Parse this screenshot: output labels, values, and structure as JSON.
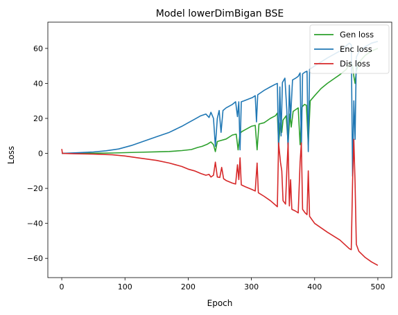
{
  "chart_data": {
    "type": "line",
    "title": "Model lowerDimBigan BSE",
    "xlabel": "Epoch",
    "ylabel": "Loss",
    "xlim": [
      -22,
      522
    ],
    "ylim": [
      -71,
      75
    ],
    "xticks": [
      0,
      100,
      200,
      300,
      400,
      500
    ],
    "yticks": [
      -60,
      -40,
      -20,
      0,
      20,
      40,
      60
    ],
    "legend_position": "top-right",
    "grid": false,
    "series": [
      {
        "name": "Gen loss",
        "color": "#2ca02c",
        "points": [
          [
            0,
            0
          ],
          [
            20,
            0
          ],
          [
            50,
            0.1
          ],
          [
            80,
            0.2
          ],
          [
            100,
            0.4
          ],
          [
            120,
            0.6
          ],
          [
            150,
            0.9
          ],
          [
            170,
            1.1
          ],
          [
            190,
            1.6
          ],
          [
            205,
            2.2
          ],
          [
            215,
            3.4
          ],
          [
            222,
            4.0
          ],
          [
            230,
            5.2
          ],
          [
            236,
            6.5
          ],
          [
            240,
            5.0
          ],
          [
            243,
            1.0
          ],
          [
            246,
            6.8
          ],
          [
            250,
            7.2
          ],
          [
            260,
            8.2
          ],
          [
            270,
            10.5
          ],
          [
            276,
            11.0
          ],
          [
            279,
            2.0
          ],
          [
            282,
            11.5
          ],
          [
            285,
            12.5
          ],
          [
            290,
            13.5
          ],
          [
            300,
            15.5
          ],
          [
            306,
            16.0
          ],
          [
            309,
            2.0
          ],
          [
            312,
            16.8
          ],
          [
            320,
            17.5
          ],
          [
            330,
            20.0
          ],
          [
            338,
            21.5
          ],
          [
            341,
            23.0
          ],
          [
            343,
            5.0
          ],
          [
            346,
            17.5
          ],
          [
            348,
            12.0
          ],
          [
            350,
            19.0
          ],
          [
            355,
            21.5
          ],
          [
            358,
            6.0
          ],
          [
            361,
            22.5
          ],
          [
            363,
            15.0
          ],
          [
            366,
            24.0
          ],
          [
            370,
            25.0
          ],
          [
            374,
            26.0
          ],
          [
            377,
            5.0
          ],
          [
            380,
            26.5
          ],
          [
            384,
            28.0
          ],
          [
            387,
            27.5
          ],
          [
            390,
            5.0
          ],
          [
            393,
            30.0
          ],
          [
            400,
            33.0
          ],
          [
            410,
            37.0
          ],
          [
            420,
            40.0
          ],
          [
            430,
            42.5
          ],
          [
            440,
            45.0
          ],
          [
            450,
            48.0
          ],
          [
            457,
            52.0
          ],
          [
            460,
            50.0
          ],
          [
            462,
            44.0
          ],
          [
            464,
            40.0
          ],
          [
            466,
            47.0
          ],
          [
            470,
            52.0
          ],
          [
            480,
            56.0
          ],
          [
            490,
            58.5
          ],
          [
            500,
            60.0
          ]
        ]
      },
      {
        "name": "Enc loss",
        "color": "#1f77b4",
        "points": [
          [
            0,
            0
          ],
          [
            20,
            0.3
          ],
          [
            50,
            0.8
          ],
          [
            70,
            1.5
          ],
          [
            90,
            2.5
          ],
          [
            110,
            4.5
          ],
          [
            130,
            7.0
          ],
          [
            150,
            9.5
          ],
          [
            170,
            12.0
          ],
          [
            190,
            15.5
          ],
          [
            200,
            17.5
          ],
          [
            210,
            19.5
          ],
          [
            220,
            21.5
          ],
          [
            228,
            22.5
          ],
          [
            233,
            20.5
          ],
          [
            236,
            23.5
          ],
          [
            240,
            20.0
          ],
          [
            243,
            4.0
          ],
          [
            246,
            20.0
          ],
          [
            249,
            24.5
          ],
          [
            252,
            12.0
          ],
          [
            255,
            24.5
          ],
          [
            260,
            26.0
          ],
          [
            270,
            28.0
          ],
          [
            275,
            29.5
          ],
          [
            278,
            21.0
          ],
          [
            280,
            29.5
          ],
          [
            282,
            2.0
          ],
          [
            284,
            29.5
          ],
          [
            288,
            30.0
          ],
          [
            295,
            31.0
          ],
          [
            302,
            32.0
          ],
          [
            306,
            33.0
          ],
          [
            308,
            18.0
          ],
          [
            310,
            33.5
          ],
          [
            320,
            36.0
          ],
          [
            330,
            38.0
          ],
          [
            338,
            39.5
          ],
          [
            341,
            40.0
          ],
          [
            343,
            1.0
          ],
          [
            345,
            38.0
          ],
          [
            347,
            10.0
          ],
          [
            349,
            40.5
          ],
          [
            353,
            43.0
          ],
          [
            356,
            25.0
          ],
          [
            358,
            1.0
          ],
          [
            360,
            39.0
          ],
          [
            362,
            20.0
          ],
          [
            365,
            42.0
          ],
          [
            370,
            43.0
          ],
          [
            374,
            44.0
          ],
          [
            377,
            46.0
          ],
          [
            379,
            2.0
          ],
          [
            381,
            45.5
          ],
          [
            385,
            46.5
          ],
          [
            388,
            47.0
          ],
          [
            390,
            1.0
          ],
          [
            392,
            48.0
          ],
          [
            400,
            50.0
          ],
          [
            420,
            54.5
          ],
          [
            440,
            58.5
          ],
          [
            455,
            63.0
          ],
          [
            458,
            62.0
          ],
          [
            460,
            -13.0
          ],
          [
            462,
            30.0
          ],
          [
            464,
            8.0
          ],
          [
            466,
            55.0
          ],
          [
            470,
            58.0
          ],
          [
            480,
            61.0
          ],
          [
            490,
            63.0
          ],
          [
            500,
            64.0
          ]
        ]
      },
      {
        "name": "Dis loss",
        "color": "#d62728",
        "points": [
          [
            0,
            2.5
          ],
          [
            1,
            0
          ],
          [
            20,
            -0.2
          ],
          [
            50,
            -0.4
          ],
          [
            80,
            -0.8
          ],
          [
            100,
            -1.5
          ],
          [
            120,
            -2.5
          ],
          [
            150,
            -4.0
          ],
          [
            170,
            -5.5
          ],
          [
            190,
            -7.5
          ],
          [
            200,
            -9.0
          ],
          [
            210,
            -10.0
          ],
          [
            220,
            -11.5
          ],
          [
            228,
            -12.5
          ],
          [
            233,
            -12.0
          ],
          [
            236,
            -13.5
          ],
          [
            240,
            -12.5
          ],
          [
            243,
            -5.0
          ],
          [
            246,
            -13.5
          ],
          [
            250,
            -13.8
          ],
          [
            253,
            -8.0
          ],
          [
            256,
            -14.5
          ],
          [
            260,
            -15.5
          ],
          [
            270,
            -17.0
          ],
          [
            275,
            -17.5
          ],
          [
            278,
            -6.5
          ],
          [
            280,
            -15.0
          ],
          [
            282,
            -2.5
          ],
          [
            284,
            -18.0
          ],
          [
            290,
            -19.0
          ],
          [
            300,
            -20.5
          ],
          [
            306,
            -21.5
          ],
          [
            309,
            -5.5
          ],
          [
            311,
            -22.5
          ],
          [
            320,
            -24.5
          ],
          [
            330,
            -27.0
          ],
          [
            338,
            -29.5
          ],
          [
            341,
            -30.5
          ],
          [
            343,
            6.0
          ],
          [
            346,
            -5.0
          ],
          [
            348,
            -10.0
          ],
          [
            350,
            -27.0
          ],
          [
            354,
            -29.0
          ],
          [
            356,
            -10.0
          ],
          [
            358,
            6.0
          ],
          [
            360,
            -30.0
          ],
          [
            362,
            -15.0
          ],
          [
            364,
            -32.0
          ],
          [
            370,
            -33.0
          ],
          [
            374,
            -34.0
          ],
          [
            377,
            -5.0
          ],
          [
            379,
            6.0
          ],
          [
            381,
            -32.0
          ],
          [
            385,
            -34.0
          ],
          [
            388,
            -35.0
          ],
          [
            390,
            -10.0
          ],
          [
            392,
            -36.0
          ],
          [
            400,
            -40.0
          ],
          [
            420,
            -45.0
          ],
          [
            440,
            -49.5
          ],
          [
            455,
            -54.5
          ],
          [
            458,
            -55.0
          ],
          [
            460,
            -16.0
          ],
          [
            462,
            8.0
          ],
          [
            464,
            -17.0
          ],
          [
            466,
            -52.0
          ],
          [
            470,
            -56.0
          ],
          [
            480,
            -59.5
          ],
          [
            490,
            -62.0
          ],
          [
            500,
            -64.0
          ]
        ]
      }
    ]
  }
}
